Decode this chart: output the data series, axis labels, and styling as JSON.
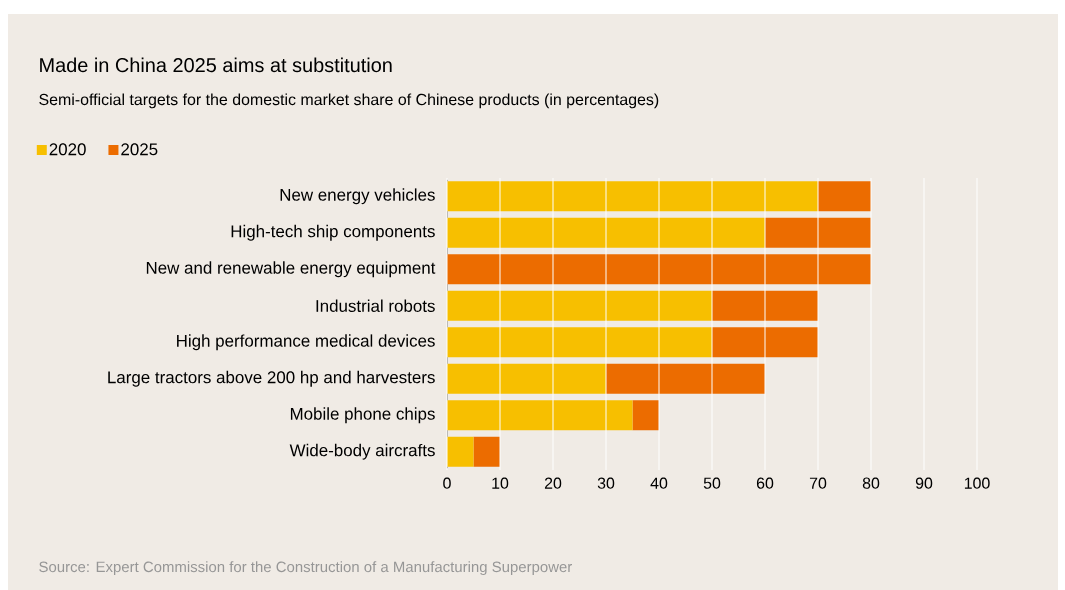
{
  "chart_data": {
    "type": "bar",
    "orientation": "horizontal",
    "stacked": true,
    "title": "Made in China 2025 aims at substitution",
    "subtitle": "Semi-official targets for the domestic market share of Chinese products (in percentages)",
    "categories": [
      "New energy vehicles",
      "High-tech ship components",
      "New and renewable energy equipment",
      "Industrial robots",
      "High performance medical devices",
      "Large tractors above 200 hp and harvesters",
      "Mobile phone chips",
      "Wide-body aircrafts"
    ],
    "series": [
      {
        "name": "2020",
        "color": "#f7bf00",
        "values": [
          70,
          60,
          0,
          50,
          50,
          30,
          35,
          5
        ]
      },
      {
        "name": "2025",
        "color": "#ec6c00",
        "values": [
          10,
          20,
          80,
          20,
          20,
          30,
          5,
          5
        ]
      }
    ],
    "xlim": [
      0,
      100
    ],
    "xticks": [
      0,
      10,
      20,
      30,
      40,
      50,
      60,
      70,
      80,
      90,
      100
    ],
    "grid": "x",
    "legend": "top left",
    "annotations": [
      "Source: Expert Commission for the Construction of a Manufacturing Superpower"
    ]
  }
}
